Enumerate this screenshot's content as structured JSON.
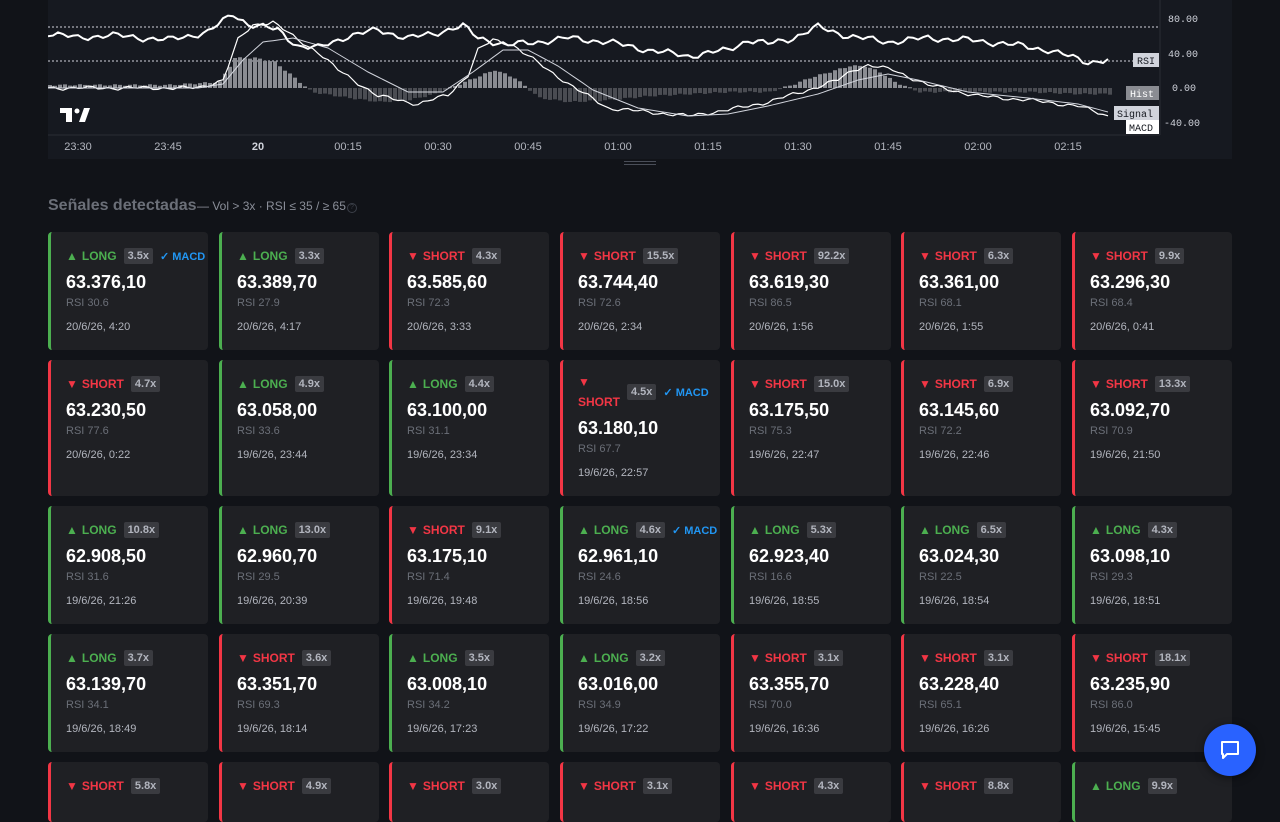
{
  "chart": {
    "y_ticks": [
      "80.00",
      "40.00",
      "0.00",
      "-40.00"
    ],
    "x_ticks": [
      "23:30",
      "23:45",
      "20",
      "00:15",
      "00:30",
      "00:45",
      "01:00",
      "01:15",
      "01:30",
      "01:45",
      "02:00",
      "02:15"
    ],
    "series_tags": [
      "RSI",
      "Hist",
      "Signal",
      "MACD"
    ],
    "logo_icon": "tradingview-logo-icon",
    "colors": {
      "rsi": "#ffffff",
      "histogram": "#8a8c92",
      "signal": "#d1d4dc",
      "macd": "#ffffff",
      "ref_line": "#d1d4dc"
    }
  },
  "signals": {
    "title": "Señales detectadas",
    "filter": "— Vol > 3x · RSI ≤ 35 / ≥ 65",
    "info_icon": "info-icon",
    "items": [
      {
        "dir": "LONG",
        "arrow": "▲",
        "mult": "3.5x",
        "macd": "✓ MACD",
        "price": "63.376,10",
        "rsi": "RSI 30.6",
        "time": "20/6/26, 4:20"
      },
      {
        "dir": "LONG",
        "arrow": "▲",
        "mult": "3.3x",
        "macd": "",
        "price": "63.389,70",
        "rsi": "RSI 27.9",
        "time": "20/6/26, 4:17"
      },
      {
        "dir": "SHORT",
        "arrow": "▼",
        "mult": "4.3x",
        "macd": "",
        "price": "63.585,60",
        "rsi": "RSI 72.3",
        "time": "20/6/26, 3:33"
      },
      {
        "dir": "SHORT",
        "arrow": "▼",
        "mult": "15.5x",
        "macd": "",
        "price": "63.744,40",
        "rsi": "RSI 72.6",
        "time": "20/6/26, 2:34"
      },
      {
        "dir": "SHORT",
        "arrow": "▼",
        "mult": "92.2x",
        "macd": "",
        "price": "63.619,30",
        "rsi": "RSI 86.5",
        "time": "20/6/26, 1:56"
      },
      {
        "dir": "SHORT",
        "arrow": "▼",
        "mult": "6.3x",
        "macd": "",
        "price": "63.361,00",
        "rsi": "RSI 68.1",
        "time": "20/6/26, 1:55"
      },
      {
        "dir": "SHORT",
        "arrow": "▼",
        "mult": "9.9x",
        "macd": "",
        "price": "63.296,30",
        "rsi": "RSI 68.4",
        "time": "20/6/26, 0:41"
      },
      {
        "dir": "SHORT",
        "arrow": "▼",
        "mult": "4.7x",
        "macd": "",
        "price": "63.230,50",
        "rsi": "RSI 77.6",
        "time": "20/6/26, 0:22"
      },
      {
        "dir": "LONG",
        "arrow": "▲",
        "mult": "4.9x",
        "macd": "",
        "price": "63.058,00",
        "rsi": "RSI 33.6",
        "time": "19/6/26, 23:44"
      },
      {
        "dir": "LONG",
        "arrow": "▲",
        "mult": "4.4x",
        "macd": "",
        "price": "63.100,00",
        "rsi": "RSI 31.1",
        "time": "19/6/26, 23:34"
      },
      {
        "dir": "SHORT",
        "arrow": "▼",
        "mult": "4.5x",
        "macd": "✓ MACD",
        "price": "63.180,10",
        "rsi": "RSI 67.7",
        "time": "19/6/26, 22:57"
      },
      {
        "dir": "SHORT",
        "arrow": "▼",
        "mult": "15.0x",
        "macd": "",
        "price": "63.175,50",
        "rsi": "RSI 75.3",
        "time": "19/6/26, 22:47"
      },
      {
        "dir": "SHORT",
        "arrow": "▼",
        "mult": "6.9x",
        "macd": "",
        "price": "63.145,60",
        "rsi": "RSI 72.2",
        "time": "19/6/26, 22:46"
      },
      {
        "dir": "SHORT",
        "arrow": "▼",
        "mult": "13.3x",
        "macd": "",
        "price": "63.092,70",
        "rsi": "RSI 70.9",
        "time": "19/6/26, 21:50"
      },
      {
        "dir": "LONG",
        "arrow": "▲",
        "mult": "10.8x",
        "macd": "",
        "price": "62.908,50",
        "rsi": "RSI 31.6",
        "time": "19/6/26, 21:26"
      },
      {
        "dir": "LONG",
        "arrow": "▲",
        "mult": "13.0x",
        "macd": "",
        "price": "62.960,70",
        "rsi": "RSI 29.5",
        "time": "19/6/26, 20:39"
      },
      {
        "dir": "SHORT",
        "arrow": "▼",
        "mult": "9.1x",
        "macd": "",
        "price": "63.175,10",
        "rsi": "RSI 71.4",
        "time": "19/6/26, 19:48"
      },
      {
        "dir": "LONG",
        "arrow": "▲",
        "mult": "4.6x",
        "macd": "✓ MACD",
        "price": "62.961,10",
        "rsi": "RSI 24.6",
        "time": "19/6/26, 18:56"
      },
      {
        "dir": "LONG",
        "arrow": "▲",
        "mult": "5.3x",
        "macd": "",
        "price": "62.923,40",
        "rsi": "RSI 16.6",
        "time": "19/6/26, 18:55"
      },
      {
        "dir": "LONG",
        "arrow": "▲",
        "mult": "6.5x",
        "macd": "",
        "price": "63.024,30",
        "rsi": "RSI 22.5",
        "time": "19/6/26, 18:54"
      },
      {
        "dir": "LONG",
        "arrow": "▲",
        "mult": "4.3x",
        "macd": "",
        "price": "63.098,10",
        "rsi": "RSI 29.3",
        "time": "19/6/26, 18:51"
      },
      {
        "dir": "LONG",
        "arrow": "▲",
        "mult": "3.7x",
        "macd": "",
        "price": "63.139,70",
        "rsi": "RSI 34.1",
        "time": "19/6/26, 18:49"
      },
      {
        "dir": "SHORT",
        "arrow": "▼",
        "mult": "3.6x",
        "macd": "",
        "price": "63.351,70",
        "rsi": "RSI 69.3",
        "time": "19/6/26, 18:14"
      },
      {
        "dir": "LONG",
        "arrow": "▲",
        "mult": "3.5x",
        "macd": "",
        "price": "63.008,10",
        "rsi": "RSI 34.2",
        "time": "19/6/26, 17:23"
      },
      {
        "dir": "LONG",
        "arrow": "▲",
        "mult": "3.2x",
        "macd": "",
        "price": "63.016,00",
        "rsi": "RSI 34.9",
        "time": "19/6/26, 17:22"
      },
      {
        "dir": "SHORT",
        "arrow": "▼",
        "mult": "3.1x",
        "macd": "",
        "price": "63.355,70",
        "rsi": "RSI 70.0",
        "time": "19/6/26, 16:36"
      },
      {
        "dir": "SHORT",
        "arrow": "▼",
        "mult": "3.1x",
        "macd": "",
        "price": "63.228,40",
        "rsi": "RSI 65.1",
        "time": "19/6/26, 16:26"
      },
      {
        "dir": "SHORT",
        "arrow": "▼",
        "mult": "18.1x",
        "macd": "",
        "price": "63.235,90",
        "rsi": "RSI 86.0",
        "time": "19/6/26, 15:45"
      },
      {
        "dir": "SHORT",
        "arrow": "▼",
        "mult": "5.8x",
        "macd": "",
        "price": "",
        "rsi": "",
        "time": ""
      },
      {
        "dir": "SHORT",
        "arrow": "▼",
        "mult": "4.9x",
        "macd": "",
        "price": "",
        "rsi": "",
        "time": ""
      },
      {
        "dir": "SHORT",
        "arrow": "▼",
        "mult": "3.0x",
        "macd": "",
        "price": "",
        "rsi": "",
        "time": ""
      },
      {
        "dir": "SHORT",
        "arrow": "▼",
        "mult": "3.1x",
        "macd": "",
        "price": "",
        "rsi": "",
        "time": ""
      },
      {
        "dir": "SHORT",
        "arrow": "▼",
        "mult": "4.3x",
        "macd": "",
        "price": "",
        "rsi": "",
        "time": ""
      },
      {
        "dir": "SHORT",
        "arrow": "▼",
        "mult": "8.8x",
        "macd": "",
        "price": "",
        "rsi": "",
        "time": ""
      },
      {
        "dir": "LONG",
        "arrow": "▲",
        "mult": "9.9x",
        "macd": "",
        "price": "",
        "rsi": "",
        "time": ""
      }
    ]
  },
  "chat": {
    "icon": "chat-bubble-icon"
  }
}
